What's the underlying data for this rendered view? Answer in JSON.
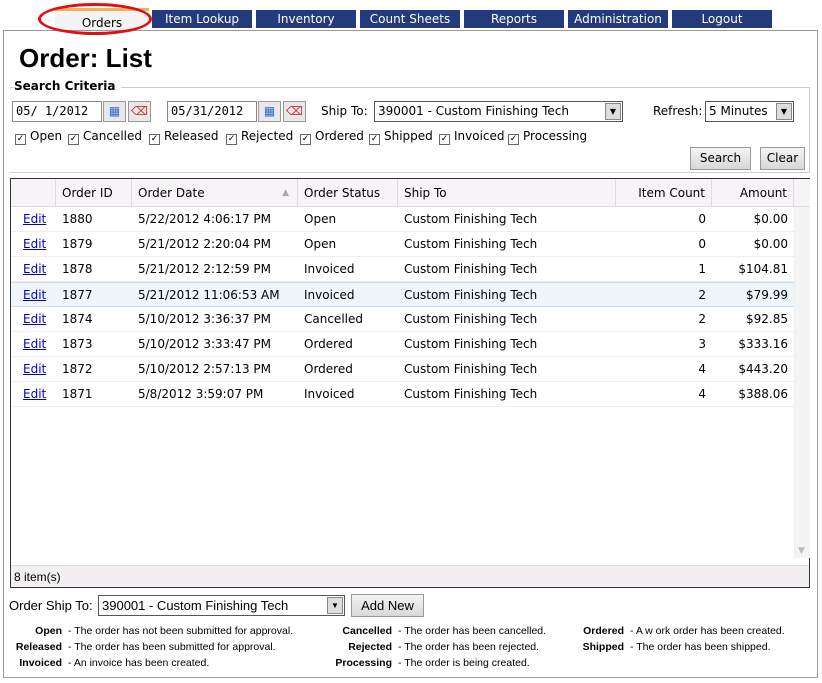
{
  "nav": {
    "tabs": [
      {
        "label": "Orders",
        "active": true
      },
      {
        "label": "Item Lookup"
      },
      {
        "label": "Inventory"
      },
      {
        "label": "Count Sheets"
      },
      {
        "label": "Reports"
      },
      {
        "label": "Administration"
      },
      {
        "label": "Logout"
      }
    ]
  },
  "page_title": "Order: List",
  "search": {
    "legend": "Search Criteria",
    "date_from": "05/ 1/2012",
    "date_to": "05/31/2012",
    "ship_to_label": "Ship To:",
    "ship_to_value": "390001 - Custom Finishing Tech",
    "refresh_label": "Refresh:",
    "refresh_value": "5 Minutes",
    "statuses": [
      {
        "label": "Open",
        "checked": true
      },
      {
        "label": "Cancelled",
        "checked": true
      },
      {
        "label": "Released",
        "checked": true
      },
      {
        "label": "Rejected",
        "checked": true
      },
      {
        "label": "Ordered",
        "checked": true
      },
      {
        "label": "Shipped",
        "checked": true
      },
      {
        "label": "Invoiced",
        "checked": true
      },
      {
        "label": "Processing",
        "checked": true
      }
    ],
    "search_label": "Search",
    "clear_label": "Clear"
  },
  "grid": {
    "columns": [
      "Order ID",
      "Order Date",
      "Order Status",
      "Ship To",
      "Item Count",
      "Amount"
    ],
    "sort_column": "Order Date",
    "sort_direction": "ascending",
    "rows": [
      {
        "edit": "Edit",
        "id": "1880",
        "date": "5/22/2012 4:06:17 PM",
        "status": "Open",
        "ship_to": "Custom Finishing Tech",
        "count": "0",
        "amount": "$0.00"
      },
      {
        "edit": "Edit",
        "id": "1879",
        "date": "5/21/2012 2:20:04 PM",
        "status": "Open",
        "ship_to": "Custom Finishing Tech",
        "count": "0",
        "amount": "$0.00"
      },
      {
        "edit": "Edit",
        "id": "1878",
        "date": "5/21/2012 2:12:59 PM",
        "status": "Invoiced",
        "ship_to": "Custom Finishing Tech",
        "count": "1",
        "amount": "$104.81"
      },
      {
        "edit": "Edit",
        "id": "1877",
        "date": "5/21/2012 11:06:53 AM",
        "status": "Invoiced",
        "ship_to": "Custom Finishing Tech",
        "count": "2",
        "amount": "$79.99",
        "highlighted": true
      },
      {
        "edit": "Edit",
        "id": "1874",
        "date": "5/10/2012 3:36:37 PM",
        "status": "Cancelled",
        "ship_to": "Custom Finishing Tech",
        "count": "2",
        "amount": "$92.85"
      },
      {
        "edit": "Edit",
        "id": "1873",
        "date": "5/10/2012 3:33:47 PM",
        "status": "Ordered",
        "ship_to": "Custom Finishing Tech",
        "count": "3",
        "amount": "$333.16"
      },
      {
        "edit": "Edit",
        "id": "1872",
        "date": "5/10/2012 2:57:13 PM",
        "status": "Ordered",
        "ship_to": "Custom Finishing Tech",
        "count": "4",
        "amount": "$443.20"
      },
      {
        "edit": "Edit",
        "id": "1871",
        "date": "5/8/2012 3:59:07 PM",
        "status": "Invoiced",
        "ship_to": "Custom Finishing Tech",
        "count": "4",
        "amount": "$388.06"
      }
    ],
    "footer": "8 item(s)"
  },
  "new_order": {
    "label": "Order Ship To:",
    "value": "390001 - Custom Finishing Tech",
    "add_label": "Add New"
  },
  "legend": [
    {
      "term": "Open",
      "desc": "- The order has not been submitted for approval."
    },
    {
      "term": "Released",
      "desc": "- The order has been submitted for approval."
    },
    {
      "term": "Invoiced",
      "desc": "- An invoice has been created."
    },
    {
      "term": "Cancelled",
      "desc": "- The order has been cancelled."
    },
    {
      "term": "Rejected",
      "desc": "- The order has been rejected."
    },
    {
      "term": "Processing",
      "desc": "- The order is being created."
    },
    {
      "term": "Ordered",
      "desc": "- A w ork order has been created."
    },
    {
      "term": "Shipped",
      "desc": "- The order has been shipped."
    }
  ]
}
